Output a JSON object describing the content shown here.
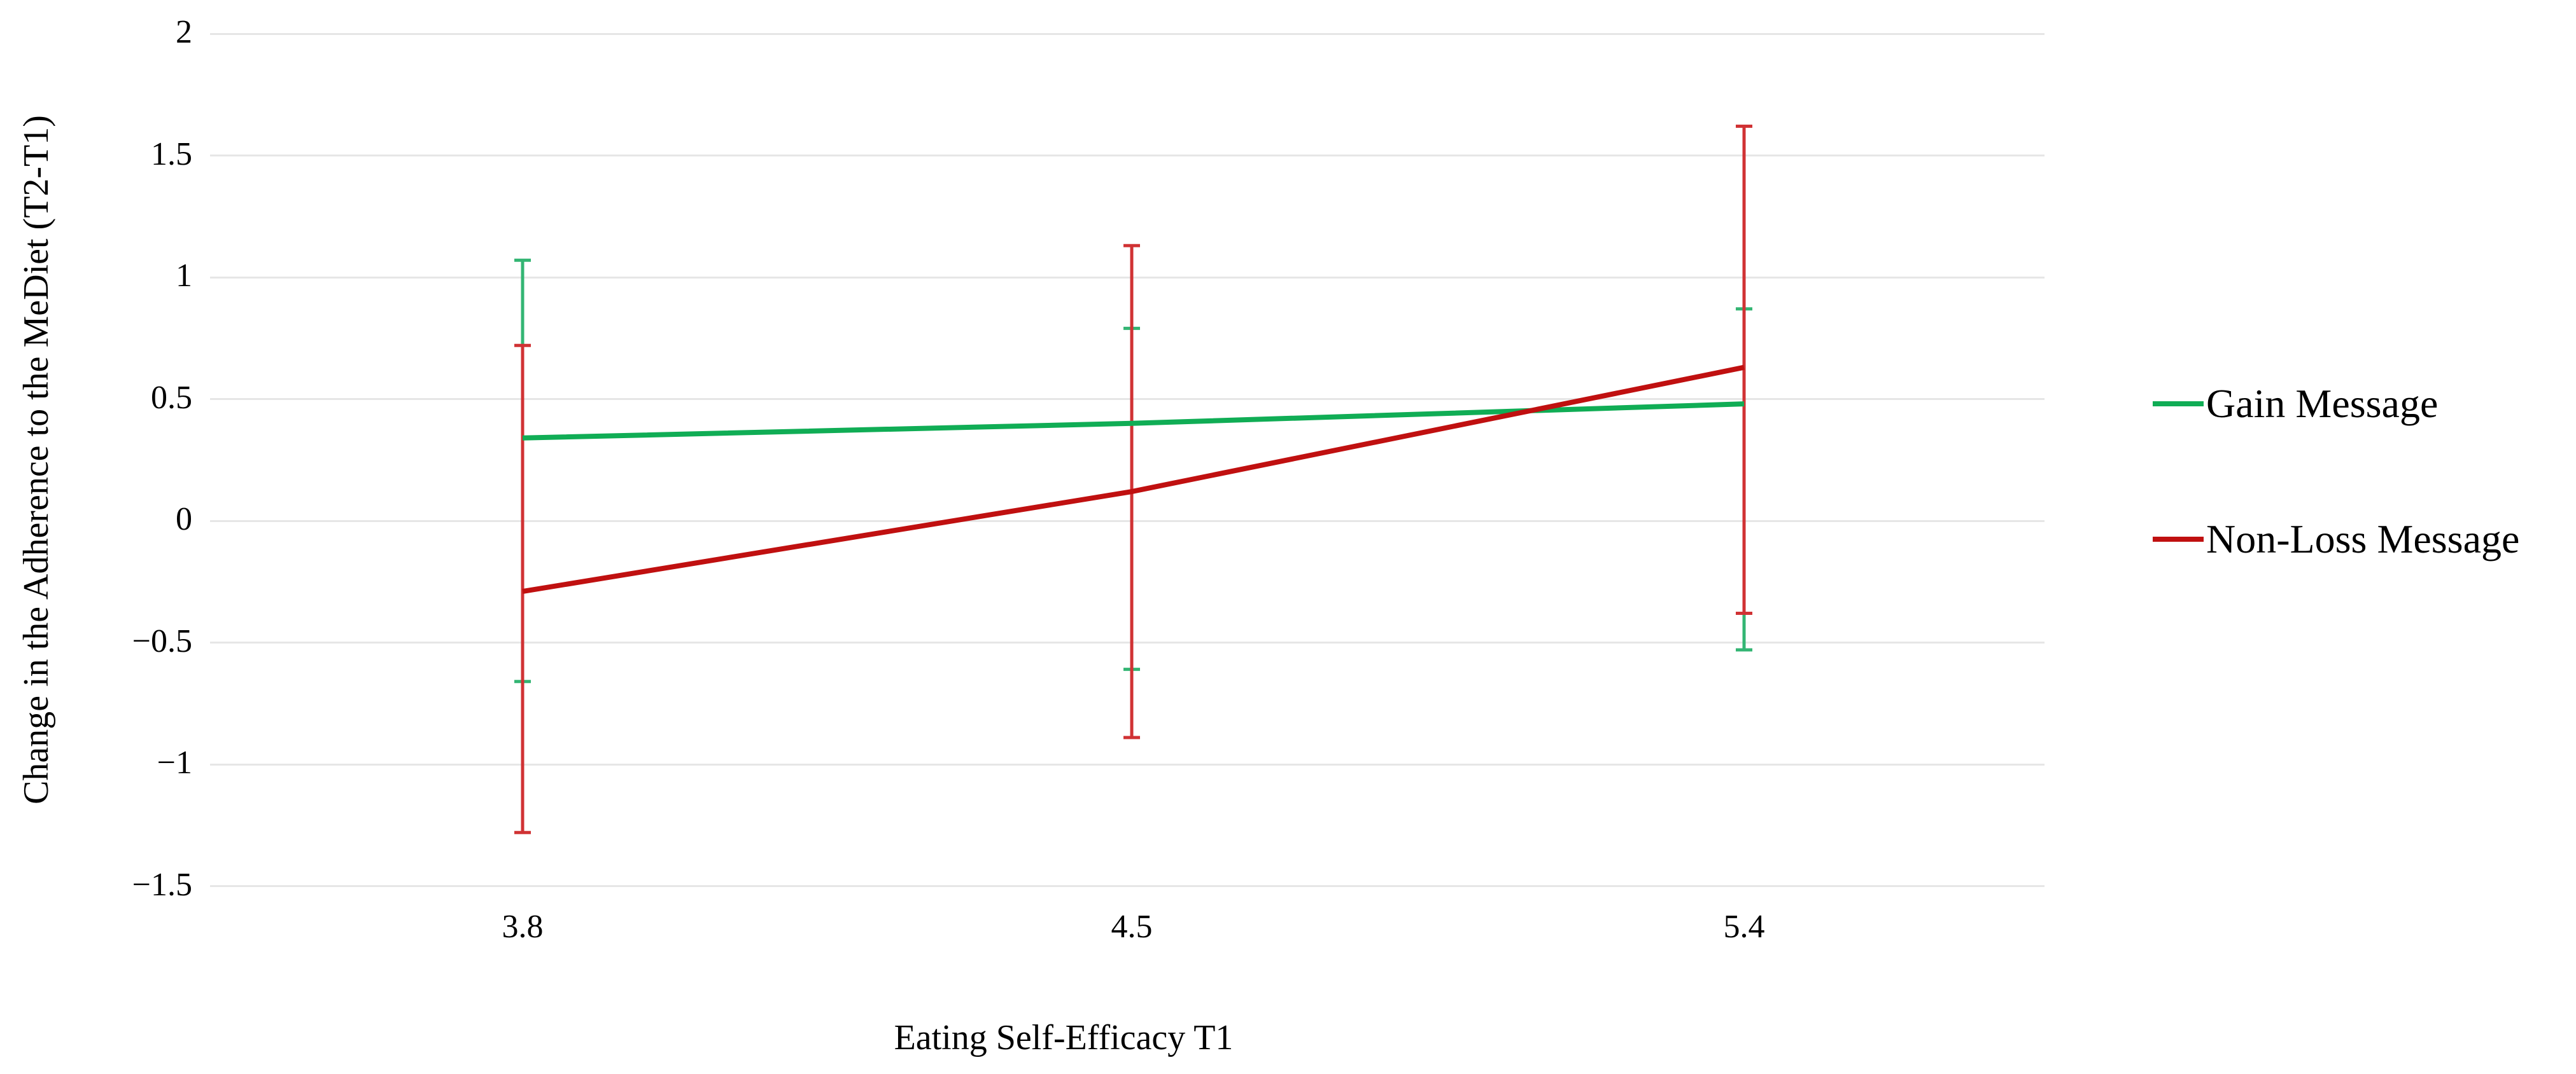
{
  "chart_data": {
    "type": "line",
    "title": "",
    "xlabel": "Eating Self-Efficacy T1",
    "ylabel": "Change in the Adherence to the MeDiet (T2-T1)",
    "categories": [
      "3.8",
      "4.5",
      "5.4"
    ],
    "ylim": [
      -1.5,
      2
    ],
    "yticks": [
      2,
      1.5,
      1,
      0.5,
      0,
      -0.5,
      -1,
      -1.5
    ],
    "grid": "horizontal",
    "legend_position": "right",
    "series": [
      {
        "name": "Gain Message",
        "color": "#10ad55",
        "error_color": "#33b573",
        "values": [
          0.34,
          0.4,
          0.48
        ],
        "ci_low": [
          -0.66,
          -0.61,
          -0.53
        ],
        "ci_high": [
          1.07,
          0.79,
          0.87
        ]
      },
      {
        "name": "Non-Loss Message",
        "color": "#c01010",
        "error_color": "#d03234",
        "values": [
          -0.29,
          0.12,
          0.63
        ],
        "ci_low": [
          -1.28,
          -0.89,
          -0.38
        ],
        "ci_high": [
          0.72,
          1.13,
          1.62
        ]
      }
    ]
  }
}
